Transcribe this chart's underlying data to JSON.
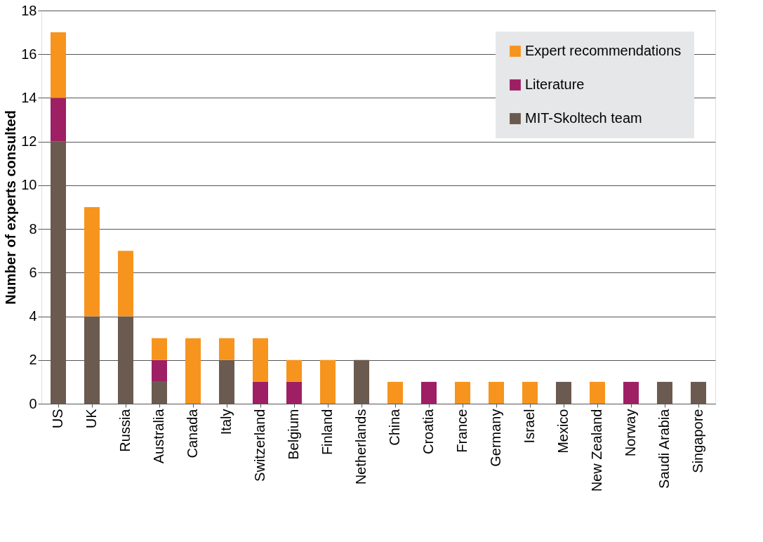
{
  "chart_data": {
    "type": "bar",
    "stacked": true,
    "ylabel": "Number of experts consulted",
    "categories": [
      "US",
      "UK",
      "Russia",
      "Australia",
      "Canada",
      "Italy",
      "Switzerland",
      "Belgium",
      "Finland",
      "Netherlands",
      "China",
      "Croatia",
      "France",
      "Germany",
      "Israel",
      "Mexico",
      "New Zealand",
      "Norway",
      "Saudi Arabia",
      "Singapore"
    ],
    "series": [
      {
        "name": "MIT-Skoltech team",
        "color": "#6b5a4f",
        "values": [
          12,
          4,
          4,
          1,
          0,
          2,
          0,
          0,
          0,
          2,
          0,
          0,
          0,
          0,
          0,
          1,
          0,
          0,
          1,
          1
        ]
      },
      {
        "name": "Literature",
        "color": "#9e1f63",
        "values": [
          2,
          0,
          0,
          1,
          0,
          0,
          1,
          1,
          0,
          0,
          0,
          1,
          0,
          0,
          0,
          0,
          0,
          1,
          0,
          0
        ]
      },
      {
        "name": "Expert recommendations",
        "color": "#f7941d",
        "values": [
          3,
          5,
          3,
          1,
          3,
          1,
          2,
          1,
          2,
          0,
          1,
          0,
          1,
          1,
          1,
          0,
          1,
          0,
          0,
          0
        ]
      }
    ],
    "ylim": [
      0,
      18
    ],
    "yticks": [
      0,
      2,
      4,
      6,
      8,
      10,
      12,
      14,
      16,
      18
    ],
    "grid": "y",
    "legend": "top right"
  }
}
